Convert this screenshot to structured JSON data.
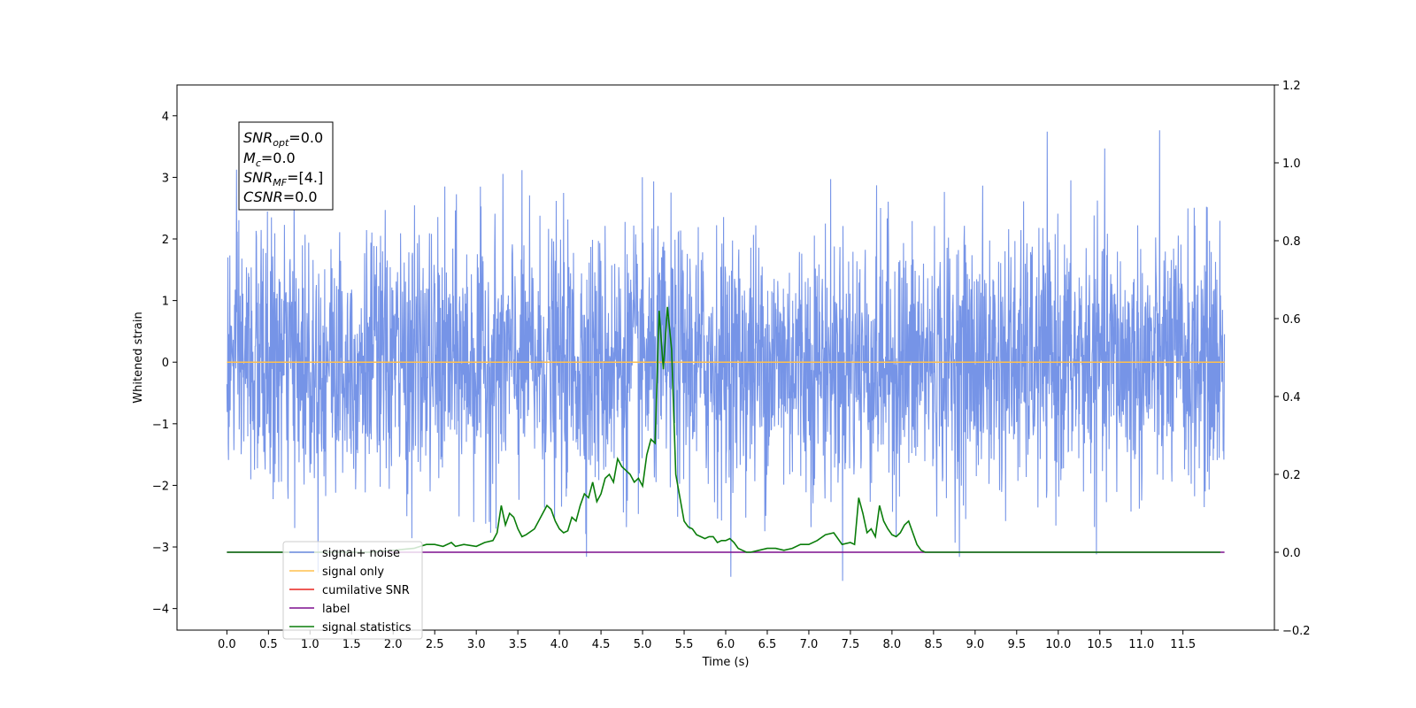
{
  "chart_data": {
    "type": "line",
    "xlabel": "Time (s)",
    "ylabel": "Whitened strain",
    "xlim": [
      -0.6,
      12.6
    ],
    "ylim": [
      -4.35,
      4.5
    ],
    "y2lim": [
      -0.2,
      1.2
    ],
    "x_ticks": [
      0.0,
      0.5,
      1.0,
      1.5,
      2.0,
      2.5,
      3.0,
      3.5,
      4.0,
      4.5,
      5.0,
      5.5,
      6.0,
      6.5,
      7.0,
      7.5,
      8.0,
      8.5,
      9.0,
      9.5,
      10.0,
      10.5,
      11.0,
      11.5
    ],
    "x_tick_labels": [
      "0.0",
      "0.5",
      "1.0",
      "1.5",
      "2.0",
      "2.5",
      "3.0",
      "3.5",
      "4.0",
      "4.5",
      "5.0",
      "5.5",
      "6.0",
      "6.5",
      "7.0",
      "7.5",
      "8.0",
      "8.5",
      "9.0",
      "9.5",
      "10.0",
      "10.5",
      "11.0",
      "11.5"
    ],
    "y_ticks": [
      4,
      3,
      2,
      1,
      0,
      -1,
      -2,
      -3,
      -4
    ],
    "y_tick_labels": [
      "4",
      "3",
      "2",
      "1",
      "0",
      "−1",
      "−2",
      "−3",
      "−4"
    ],
    "y2_ticks": [
      1.2,
      1.0,
      0.8,
      0.6,
      0.4,
      0.2,
      0.0,
      -0.2
    ],
    "y2_tick_labels": [
      "1.2",
      "1.0",
      "0.8",
      "0.6",
      "0.4",
      "0.2",
      "0.0",
      "−0.2"
    ],
    "grid": false,
    "legend_placement": "lower-left",
    "annotation": {
      "snr_opt": {
        "sym": "SNR",
        "sub": "opt",
        "val": "=0.0"
      },
      "mc": {
        "sym": "M",
        "sub": "c",
        "val": "=0.0"
      },
      "snr_mf": {
        "sym": "SNR",
        "sub": "MF",
        "val": "=[4.]"
      },
      "csnr": {
        "sym": "CSNR",
        "sub": "",
        "val": "=0.0"
      }
    },
    "series": [
      {
        "name": "signal+ noise",
        "color": "#6f8ee6",
        "axis": "left",
        "kind": "noise",
        "x_range": [
          0.0,
          12.0
        ],
        "amplitude_typical": 2.0,
        "peak_max": 4.1,
        "peak_min": -3.9
      },
      {
        "name": "signal only",
        "color": "#ffc04d",
        "axis": "left",
        "x": [
          0.0,
          12.0
        ],
        "y": [
          0.0,
          0.0
        ]
      },
      {
        "name": "cumilative SNR",
        "color": "#e8241f",
        "axis": "right",
        "x": [],
        "y": []
      },
      {
        "name": "label",
        "color": "#7d0f8e",
        "axis": "right",
        "x": [
          0.0,
          12.0
        ],
        "y": [
          0.0,
          0.0
        ]
      },
      {
        "name": "signal statistics",
        "color": "#0a7d0a",
        "axis": "right",
        "x": [
          0.0,
          0.25,
          0.5,
          0.75,
          1.0,
          1.25,
          1.5,
          1.75,
          2.0,
          2.25,
          2.4,
          2.5,
          2.6,
          2.7,
          2.75,
          2.85,
          3.0,
          3.1,
          3.2,
          3.25,
          3.3,
          3.35,
          3.4,
          3.45,
          3.5,
          3.55,
          3.6,
          3.7,
          3.8,
          3.85,
          3.9,
          3.95,
          4.0,
          4.05,
          4.1,
          4.15,
          4.2,
          4.25,
          4.3,
          4.35,
          4.4,
          4.45,
          4.5,
          4.55,
          4.6,
          4.65,
          4.7,
          4.75,
          4.8,
          4.85,
          4.9,
          4.95,
          5.0,
          5.05,
          5.1,
          5.15,
          5.2,
          5.25,
          5.3,
          5.35,
          5.4,
          5.45,
          5.5,
          5.55,
          5.6,
          5.65,
          5.7,
          5.75,
          5.8,
          5.85,
          5.9,
          5.95,
          6.0,
          6.05,
          6.1,
          6.15,
          6.2,
          6.25,
          6.3,
          6.4,
          6.5,
          6.6,
          6.7,
          6.8,
          6.9,
          7.0,
          7.1,
          7.2,
          7.3,
          7.4,
          7.5,
          7.55,
          7.6,
          7.65,
          7.7,
          7.75,
          7.8,
          7.85,
          7.9,
          7.95,
          8.0,
          8.05,
          8.1,
          8.15,
          8.2,
          8.25,
          8.3,
          8.35,
          8.4,
          8.45,
          8.5,
          8.55,
          8.6,
          8.65,
          8.7,
          8.75,
          8.8,
          8.85,
          8.9,
          9.0,
          9.5,
          10.0,
          11.0,
          11.95
        ],
        "y": [
          0.0,
          0.0,
          0.0,
          0.0,
          0.0,
          0.0,
          0.0,
          0.0,
          0.005,
          0.01,
          0.02,
          0.02,
          0.015,
          0.025,
          0.015,
          0.02,
          0.015,
          0.025,
          0.03,
          0.05,
          0.12,
          0.07,
          0.1,
          0.09,
          0.06,
          0.04,
          0.045,
          0.06,
          0.1,
          0.12,
          0.11,
          0.08,
          0.06,
          0.05,
          0.055,
          0.09,
          0.08,
          0.12,
          0.15,
          0.14,
          0.18,
          0.13,
          0.15,
          0.19,
          0.2,
          0.18,
          0.24,
          0.22,
          0.21,
          0.2,
          0.18,
          0.19,
          0.17,
          0.25,
          0.29,
          0.28,
          0.62,
          0.47,
          0.63,
          0.52,
          0.2,
          0.14,
          0.08,
          0.065,
          0.06,
          0.045,
          0.04,
          0.035,
          0.04,
          0.04,
          0.025,
          0.03,
          0.03,
          0.035,
          0.025,
          0.01,
          0.005,
          0.0,
          0.0,
          0.005,
          0.01,
          0.01,
          0.005,
          0.01,
          0.02,
          0.02,
          0.03,
          0.045,
          0.05,
          0.02,
          0.025,
          0.02,
          0.14,
          0.1,
          0.05,
          0.06,
          0.04,
          0.12,
          0.08,
          0.06,
          0.045,
          0.04,
          0.05,
          0.07,
          0.08,
          0.05,
          0.02,
          0.005,
          0.0,
          0.0,
          0.0,
          0.0,
          0.0,
          0.0,
          0.0,
          0.0,
          0.0,
          0.0,
          0.0,
          0.0,
          0.0,
          0.0,
          0.0,
          0.0
        ]
      }
    ]
  }
}
